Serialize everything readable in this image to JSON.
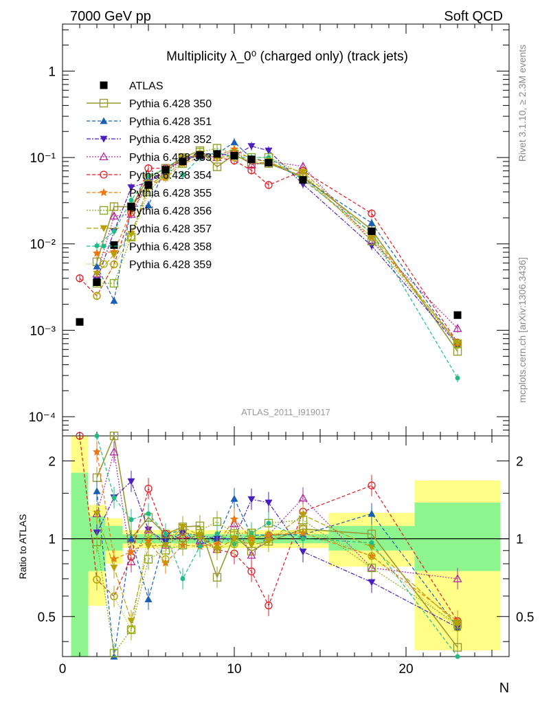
{
  "header": {
    "left": "7000 GeV pp",
    "right": "Soft QCD"
  },
  "side_labels": {
    "rivet": "Rivet 3.1.10, ≥ 2.3M events",
    "mcplots": "mcplots.cern.ch [arXiv:1306.3436]"
  },
  "chart_data": {
    "type": "scatter",
    "title": "Multiplicity λ_0⁰ (charged only) (track jets)",
    "watermark": "ATLAS_2011_I919017",
    "xlabel": "N",
    "ylabel_ratio": "Ratio to ATLAS",
    "xlim": [
      0,
      26
    ],
    "ylim": [
      6e-05,
      3.5
    ],
    "ylim_ratio": [
      0.35,
      2.5
    ],
    "log_y": true,
    "x_ticks": [
      "0",
      "10",
      "20"
    ],
    "y_ticks": [
      "10⁻⁴",
      "10⁻³",
      "10⁻²",
      "10⁻¹",
      "1"
    ],
    "ratio_ticks": [
      "0.5",
      "1",
      "2"
    ],
    "legend_position": "upper-left",
    "colors": {
      "band_inner": "#8ef58e",
      "band_outer": "#ffff88"
    },
    "x": [
      1,
      2,
      3,
      4,
      5,
      6,
      7,
      8,
      9,
      10,
      11,
      12,
      14,
      18,
      23
    ],
    "data": {
      "name": "ATLAS",
      "y": [
        0.00125,
        0.0036,
        0.0097,
        0.027,
        0.048,
        0.072,
        0.09,
        0.107,
        0.11,
        0.105,
        0.095,
        0.087,
        0.055,
        0.014,
        0.0015
      ]
    },
    "ratio_bands": [
      {
        "x0": 0.5,
        "x1": 1.5,
        "inner": [
          0.34,
          1.8
        ],
        "outer": [
          0.34,
          2.5
        ]
      },
      {
        "x0": 1.5,
        "x1": 2.5,
        "inner": [
          0.75,
          1.22
        ],
        "outer": [
          0.55,
          1.35
        ]
      },
      {
        "x0": 2.5,
        "x1": 3.5,
        "inner": [
          0.9,
          1.12
        ],
        "outer": [
          0.8,
          1.2
        ]
      },
      {
        "x0": 3.5,
        "x1": 15.5,
        "inner": [
          0.96,
          1.04
        ],
        "outer": [
          0.92,
          1.08
        ]
      },
      {
        "x0": 15.5,
        "x1": 20.5,
        "inner": [
          0.9,
          1.12
        ],
        "outer": [
          0.78,
          1.26
        ]
      },
      {
        "x0": 20.5,
        "x1": 25.5,
        "inner": [
          0.75,
          1.38
        ],
        "outer": [
          0.37,
          1.68
        ]
      }
    ],
    "series": [
      {
        "name": "Pythia 6.428 350",
        "color": "#999933",
        "marker": "square-open",
        "dash": "",
        "width": 1.6,
        "y": [
          null,
          0.0062,
          0.027,
          0.027,
          0.058,
          0.075,
          0.1,
          0.12,
          0.078,
          0.108,
          0.085,
          0.085,
          0.06,
          0.0146,
          0.00057
        ]
      },
      {
        "name": "Pythia 6.428 351",
        "color": "#1a5fb4",
        "marker": "triangle-up",
        "dash": "5,3",
        "width": 1.2,
        "y": [
          null,
          0.0055,
          0.0022,
          0.027,
          0.028,
          0.075,
          0.097,
          0.102,
          0.11,
          0.15,
          0.098,
          0.09,
          0.057,
          0.0175,
          0.00068
        ]
      },
      {
        "name": "Pythia 6.428 352",
        "color": "#4b1fbf",
        "marker": "triangle-down",
        "dash": "6,2,2,2",
        "width": 1.2,
        "y": [
          null,
          0.0038,
          0.014,
          0.045,
          0.052,
          0.07,
          0.095,
          0.11,
          0.11,
          0.105,
          0.135,
          0.12,
          0.049,
          0.0095,
          0.00068
        ]
      },
      {
        "name": "Pythia 6.428 353",
        "color": "#b02a9e",
        "marker": "triangle-open",
        "dash": "2,2",
        "width": 1.2,
        "y": [
          null,
          0.0045,
          0.021,
          0.022,
          0.052,
          0.068,
          0.093,
          0.105,
          0.1,
          0.12,
          0.082,
          0.09,
          0.079,
          0.0108,
          0.00105
        ]
      },
      {
        "name": "Pythia 6.428 354",
        "color": "#e01b24",
        "marker": "circle-open",
        "dash": "5,3",
        "width": 1.2,
        "y": [
          0.004,
          0.0025,
          0.0058,
          0.023,
          0.075,
          0.075,
          0.09,
          0.11,
          0.1,
          0.092,
          0.071,
          0.048,
          0.07,
          0.0225,
          0.00072
        ]
      },
      {
        "name": "Pythia 6.428 355",
        "color": "#ee7711",
        "marker": "star",
        "dash": "5,3",
        "width": 1.2,
        "y": [
          null,
          0.0078,
          0.0081,
          0.024,
          0.047,
          0.058,
          0.085,
          0.1,
          0.105,
          0.125,
          0.095,
          0.09,
          0.058,
          0.012,
          0.00072
        ]
      },
      {
        "name": "Pythia 6.428 356",
        "color": "#88aa22",
        "marker": "square-open",
        "dash": "2,2",
        "width": 1.2,
        "y": [
          null,
          0.0035,
          0.0035,
          0.012,
          0.04,
          0.065,
          0.085,
          0.115,
          0.128,
          0.11,
          0.1,
          0.1,
          0.065,
          0.0108,
          0.0007
        ]
      },
      {
        "name": "Pythia 6.428 357",
        "color": "#b8a000",
        "marker": "triangle-down",
        "dash": "7,3",
        "width": 1.2,
        "y": [
          null,
          0.0045,
          0.0075,
          0.013,
          0.045,
          0.068,
          0.1,
          0.11,
          0.1,
          0.105,
          0.09,
          0.085,
          0.068,
          0.013,
          0.0007
        ]
      },
      {
        "name": "Pythia 6.428 358",
        "color": "#22bb88",
        "marker": "circle",
        "dash": "5,3",
        "width": 1.2,
        "y": [
          null,
          0.0095,
          0.014,
          0.032,
          0.06,
          0.075,
          0.063,
          0.1,
          0.115,
          0.1,
          0.1,
          0.1,
          0.055,
          0.0135,
          0.00028
        ]
      },
      {
        "name": "Pythia 6.428 359",
        "color": "#aaaa00",
        "marker": "circle-open",
        "dash": "1,2",
        "width": 1.2,
        "y": [
          null,
          0.0025,
          0.0058,
          0.012,
          0.05,
          0.06,
          0.095,
          0.11,
          0.1,
          0.1,
          0.095,
          0.09,
          0.06,
          0.012,
          0.00068
        ]
      }
    ]
  }
}
